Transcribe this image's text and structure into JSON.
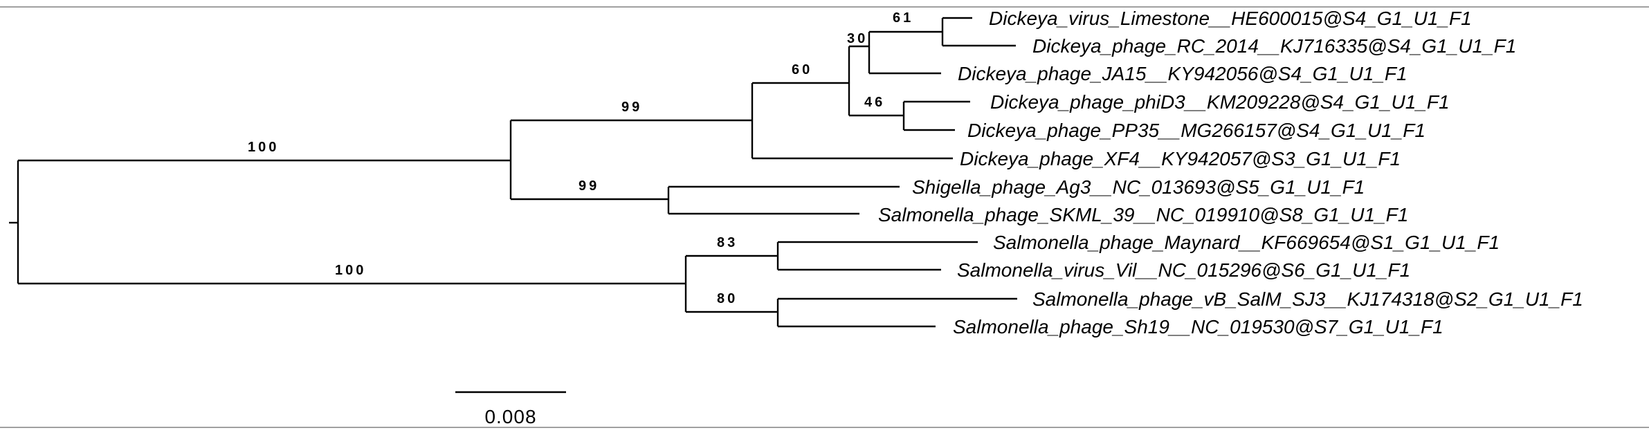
{
  "tree": {
    "taxa": [
      "Dickeya_virus_Limestone__HE600015@S4_G1_U1_F1",
      "Dickeya_phage_RC_2014__KJ716335@S4_G1_U1_F1",
      "Dickeya_phage_JA15__KY942056@S4_G1_U1_F1",
      "Dickeya_phage_phiD3__KM209228@S4_G1_U1_F1",
      "Dickeya_phage_PP35__MG266157@S4_G1_U1_F1",
      "Dickeya_phage_XF4__KY942057@S3_G1_U1_F1",
      "Shigella_phage_Ag3__NC_013693@S5_G1_U1_F1",
      "Salmonella_phage_SKML_39__NC_019910@S8_G1_U1_F1",
      "Salmonella_phage_Maynard__KF669654@S1_G1_U1_F1",
      "Salmonella_virus_Vil__NC_015296@S6_G1_U1_F1",
      "Salmonella_phage_vB_SalM_SJ3__KJ174318@S2_G1_U1_F1",
      "Salmonella_phage_Sh19__NC_019530@S7_G1_U1_F1"
    ],
    "support_values": {
      "upper_clade": "100",
      "lower_clade": "100",
      "dickeya_clade": "99",
      "shigella_salmonella_pair": "99",
      "dickeya_core": "60",
      "dickeya_triplet": "30",
      "limestone_rc2014": "61",
      "phid3_pp35": "46",
      "maynard_vil": "83",
      "sj3_sh19": "80"
    },
    "scale_bar": {
      "label": "0.008",
      "value": 0.008
    }
  }
}
